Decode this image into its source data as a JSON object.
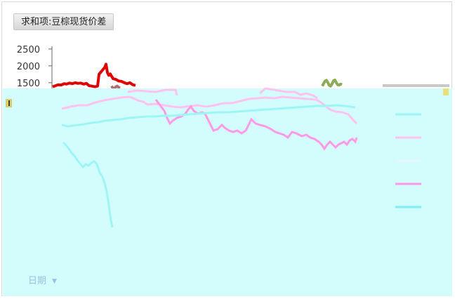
{
  "pivot": {
    "field_button": "求和项:豆棕现货价差",
    "axis_field_button": "日期"
  },
  "colors": {
    "series_red": "#e00000",
    "series_pink": "#ff99e6",
    "series_light_pink": "#ffc2ef",
    "series_cyan": "#9ef5f5",
    "series_gray": "#b07070",
    "series_green": "#8bab55",
    "overlay": "#d3fcfc"
  },
  "icons": {
    "dropdown": "triangle-down-icon"
  },
  "chart_data": {
    "type": "line",
    "title": "",
    "xlabel": "",
    "ylabel": "",
    "yticks": [
      2500,
      2000,
      1500
    ],
    "ylim": [
      1330,
      2580
    ],
    "grid": false,
    "legend": "right",
    "series": [
      {
        "color": "#e00000",
        "x": [
          0,
          4,
          8,
          12,
          16,
          20,
          24,
          28,
          32,
          36,
          40,
          44,
          48,
          52,
          56,
          60,
          64,
          66,
          70,
          74,
          76,
          78,
          80,
          82,
          86,
          90,
          94,
          98,
          102,
          106,
          110,
          114,
          118
        ],
        "y": [
          1380,
          1410,
          1440,
          1430,
          1470,
          1460,
          1490,
          1470,
          1500,
          1480,
          1490,
          1460,
          1480,
          1410,
          1400,
          1380,
          1400,
          1750,
          1850,
          1950,
          2050,
          1800,
          1720,
          1760,
          1620,
          1600,
          1550,
          1540,
          1500,
          1470,
          1500,
          1440,
          1420
        ]
      },
      {
        "color": "#b07070",
        "x": [
          84,
          86,
          88,
          90,
          92,
          94,
          96
        ],
        "y": [
          1400,
          1330,
          1330,
          1380,
          1400,
          1360,
          1340
        ]
      },
      {
        "color": "#8bab55",
        "x": [
          384,
          386,
          388,
          390,
          392,
          394,
          396,
          398,
          400,
          402,
          404,
          406,
          408,
          410,
          412
        ],
        "y": [
          1400,
          1480,
          1550,
          1570,
          1500,
          1420,
          1400,
          1470,
          1560,
          1580,
          1500,
          1440,
          1430,
          1460,
          1440
        ]
      }
    ]
  }
}
